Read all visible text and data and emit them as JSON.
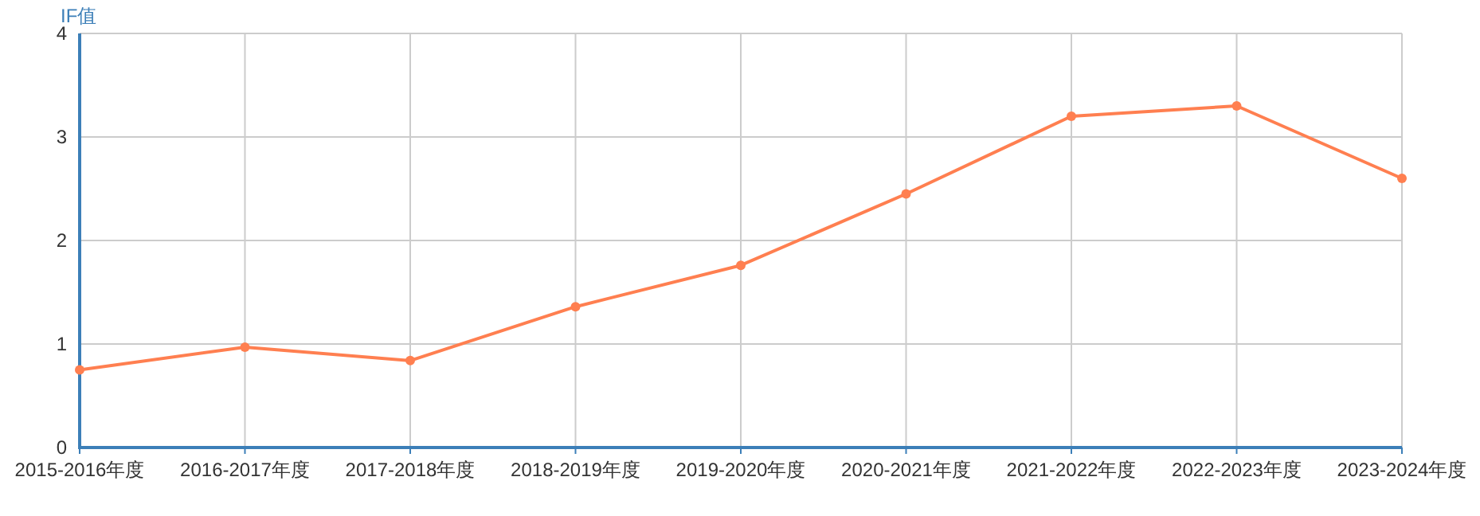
{
  "chart_data": {
    "type": "line",
    "ylabel": "IF值",
    "categories": [
      "2015-2016年度",
      "2016-2017年度",
      "2017-2018年度",
      "2018-2019年度",
      "2019-2020年度",
      "2020-2021年度",
      "2021-2022年度",
      "2022-2023年度",
      "2023-2024年度"
    ],
    "series": [
      {
        "color": "#ff7f50",
        "values": [
          0.75,
          0.97,
          0.84,
          1.36,
          1.76,
          2.45,
          3.2,
          3.3,
          2.6
        ]
      }
    ],
    "ylim": [
      0,
      4
    ],
    "yticks": [
      0,
      1,
      2,
      3,
      4
    ],
    "grid": true,
    "marker": "circle",
    "line_style": "solid"
  }
}
